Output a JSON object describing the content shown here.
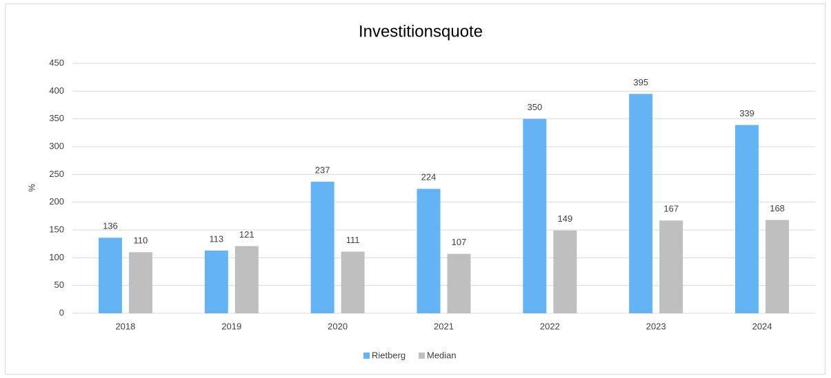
{
  "chart_data": {
    "type": "bar",
    "title": "Investitionsquote",
    "y_label": "%",
    "categories": [
      "2018",
      "2019",
      "2020",
      "2021",
      "2022",
      "2023",
      "2024"
    ],
    "series": [
      {
        "name": "Rietberg",
        "color": "#63b3f5",
        "values": [
          136,
          113,
          237,
          224,
          350,
          395,
          339
        ]
      },
      {
        "name": "Median",
        "color": "#bfbfbf",
        "values": [
          110,
          121,
          111,
          107,
          149,
          167,
          168
        ]
      }
    ],
    "ylim": [
      0,
      450
    ],
    "yticks": [
      0,
      50,
      100,
      150,
      200,
      250,
      300,
      350,
      400,
      450
    ],
    "grid": true,
    "legend": "bottom"
  }
}
